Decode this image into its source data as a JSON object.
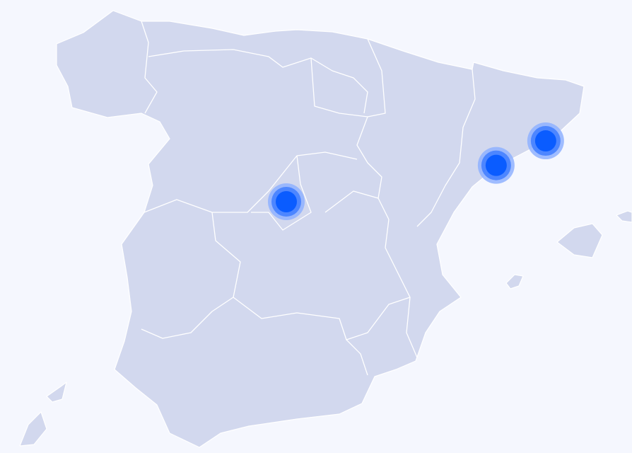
{
  "map": {
    "markers": [
      {
        "lat": 40.42,
        "lon": -3.7
      },
      {
        "lat": 41.0,
        "lon": 1.05
      },
      {
        "lat": 41.39,
        "lon": 2.17
      }
    ]
  }
}
